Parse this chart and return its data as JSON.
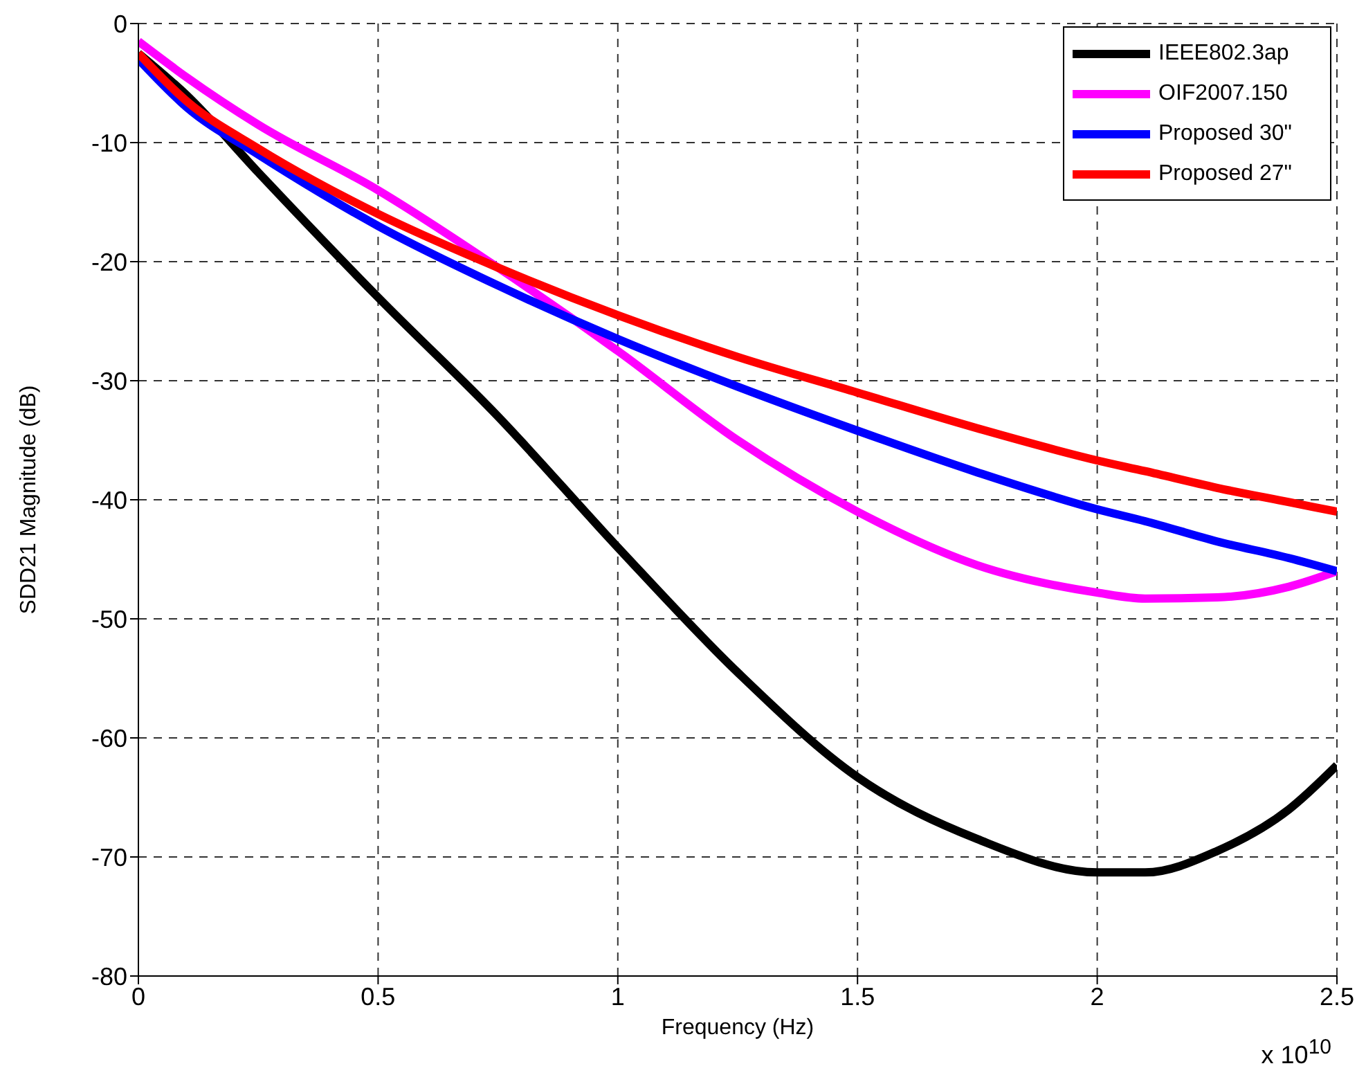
{
  "chart_data": {
    "type": "line",
    "xlabel": "Frequency (Hz)",
    "ylabel": "SDD21 Magnitude (dB)",
    "annotations": [
      "x 10$^{10}$"
    ],
    "x": [
      0,
      0.1,
      0.25,
      0.5,
      0.75,
      1,
      1.25,
      1.5,
      1.75,
      2,
      2.1,
      2.25,
      2.4,
      2.5
    ],
    "series": [
      {
        "name": "IEEE802.3ap",
        "color": "#000000",
        "values": [
          -2.5,
          -6,
          -12.5,
          -23,
          -33,
          -44,
          -54.5,
          -63.3,
          -68.5,
          -71.3,
          -71.3,
          -69.5,
          -66,
          -62.3
        ]
      },
      {
        "name": "OIF2007.150",
        "color": "#ff00ff",
        "values": [
          -1.5,
          -4.5,
          -8.5,
          -14,
          -20.5,
          -27.5,
          -35,
          -41,
          -45.5,
          -47.8,
          -48.3,
          -48.2,
          -47.3,
          -46
        ]
      },
      {
        "name": "Proposed 30\"",
        "color": "#0000ff",
        "values": [
          -3,
          -7,
          -11,
          -17,
          -22,
          -26.5,
          -30.5,
          -34.2,
          -37.7,
          -40.8,
          -41.8,
          -43.5,
          -44.9,
          -46
        ]
      },
      {
        "name": "Proposed 27\"",
        "color": "#ff0000",
        "values": [
          -2.5,
          -6.5,
          -10.5,
          -16,
          -20.5,
          -24.5,
          -28,
          -31,
          -34,
          -36.7,
          -37.6,
          -39,
          -40.2,
          -41
        ]
      }
    ],
    "xlim": [
      0,
      2.5
    ],
    "xticks": [
      0,
      0.5,
      1,
      1.5,
      2,
      2.5
    ],
    "ylim": [
      -80,
      0
    ],
    "yticks": [
      -80,
      -70,
      -60,
      -50,
      -40,
      -30,
      -20,
      -10,
      0
    ],
    "grid": true,
    "legend": "top right",
    "marker": "none",
    "line_style": "solid"
  }
}
